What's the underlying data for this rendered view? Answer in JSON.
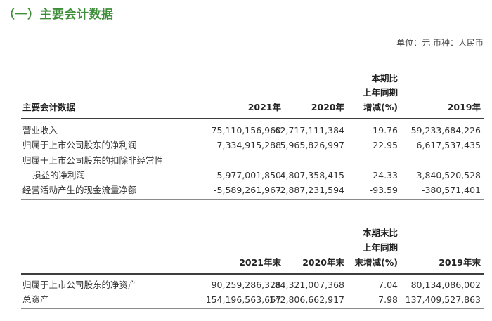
{
  "section_title": "（一）主要会计数据",
  "unit_note": "单位：元   币种：人民币",
  "table1": {
    "headers": {
      "label": "主要会计数据",
      "y2021": "2021年",
      "y2020": "2020年",
      "change_line1": "本期比",
      "change_line2": "上年同期",
      "change_line3": "增减(%)",
      "y2019": "2019年"
    },
    "rows": [
      {
        "label": "营业收入",
        "v2021": "75,110,156,960",
        "v2020": "62,717,111,384",
        "change": "19.76",
        "v2019": "59,233,684,226"
      },
      {
        "label": "归属于上市公司股东的净利润",
        "v2021": "7,334,915,288",
        "v2020": "5,965,826,997",
        "change": "22.95",
        "v2019": "6,617,537,435"
      },
      {
        "label": "归属于上市公司股东的扣除非经常性",
        "label2": "损益的净利润",
        "v2021": "5,977,001,850",
        "v2020": "4,807,358,415",
        "change": "24.33",
        "v2019": "3,840,520,528"
      },
      {
        "label": "经营活动产生的现金流量净额",
        "v2021": "-5,589,261,967",
        "v2020": "-2,887,231,594",
        "change": "-93.59",
        "v2019": "-380,571,401"
      }
    ]
  },
  "table2": {
    "headers": {
      "y2021": "2021年末",
      "y2020": "2020年末",
      "change_line1": "本期末比",
      "change_line2": "上年同期",
      "change_line3": "末增减(%)",
      "y2019": "2019年末"
    },
    "rows": [
      {
        "label": "归属于上市公司股东的净资产",
        "v2021": "90,259,286,328",
        "v2020": "84,321,007,368",
        "change": "7.04",
        "v2019": "80,134,086,002"
      },
      {
        "label": "总资产",
        "v2021": "154,196,563,667",
        "v2020": "142,806,662,917",
        "change": "7.98",
        "v2019": "137,409,527,863"
      }
    ]
  }
}
